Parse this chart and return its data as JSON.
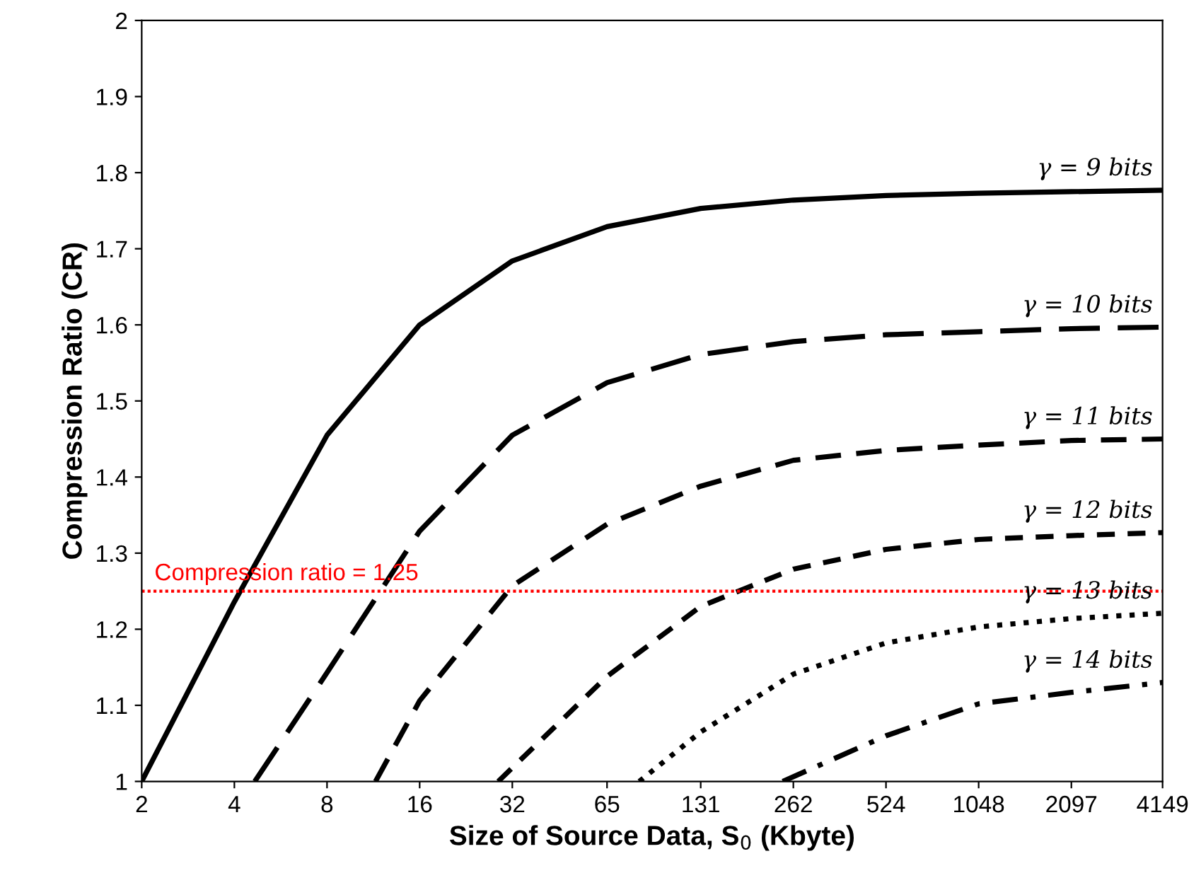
{
  "chart_data": {
    "type": "line",
    "xlabel": "Size of Source Data, S$_{0}$ (Kbyte)",
    "ylabel": "Compression Ratio (CR)",
    "log": "x",
    "xlim": [
      2,
      4149
    ],
    "xticks": [
      2,
      4,
      8,
      16,
      32,
      65,
      131,
      262,
      524,
      1048,
      2097,
      4149
    ],
    "ylim": [
      1,
      2
    ],
    "yticks": [
      1,
      1.1,
      1.2,
      1.3,
      1.4,
      1.5,
      1.6,
      1.7,
      1.8,
      1.9,
      2
    ],
    "grid": false,
    "legend": false,
    "marker": "none",
    "series": [
      {
        "name": "γ = 9 bits",
        "color": "#000000",
        "line_style": "solid",
        "x": [
          2,
          4,
          8,
          16,
          32,
          65,
          131,
          262,
          524,
          1048,
          2097,
          4149
        ],
        "values": [
          1.0,
          1.236,
          1.455,
          1.6,
          1.684,
          1.729,
          1.753,
          1.764,
          1.77,
          1.773,
          1.775,
          1.777
        ]
      },
      {
        "name": "γ = 10 bits",
        "color": "#000000",
        "line_style": "dashed",
        "x": [
          4.66,
          8,
          16,
          32,
          65,
          131,
          262,
          524,
          1048,
          2097,
          4149
        ],
        "values": [
          1.0,
          1.143,
          1.329,
          1.455,
          1.524,
          1.561,
          1.578,
          1.587,
          1.591,
          1.595,
          1.597
        ]
      },
      {
        "name": "γ = 11 bits",
        "color": "#000000",
        "line_style": "dashed",
        "x": [
          11.5,
          16,
          32,
          65,
          131,
          262,
          524,
          1048,
          2097,
          4149
        ],
        "values": [
          1.0,
          1.106,
          1.257,
          1.338,
          1.388,
          1.422,
          1.435,
          1.442,
          1.448,
          1.45
        ]
      },
      {
        "name": "γ = 12 bits",
        "color": "#000000",
        "line_style": "dashed",
        "x": [
          28.8,
          65,
          131,
          262,
          524,
          1048,
          2097,
          4149
        ],
        "values": [
          1.0,
          1.138,
          1.23,
          1.279,
          1.305,
          1.318,
          1.323,
          1.327
        ]
      },
      {
        "name": "γ = 13 bits",
        "color": "#000000",
        "line_style": "dotted",
        "x": [
          82.7,
          131,
          262,
          524,
          1048,
          2097,
          4149
        ],
        "values": [
          1.0,
          1.065,
          1.141,
          1.182,
          1.203,
          1.214,
          1.221
        ]
      },
      {
        "name": "γ = 14 bits",
        "color": "#000000",
        "line_style": "dashed",
        "x": [
          242,
          524,
          1048,
          2097,
          4149
        ],
        "values": [
          1.0,
          1.06,
          1.102,
          1.117,
          1.13
        ]
      }
    ],
    "ref_lines": [
      {
        "axis": "y",
        "value": 1.25,
        "label": "Compression ratio = 1.25",
        "color": "#ff0000",
        "line_style": "dotted"
      }
    ]
  }
}
